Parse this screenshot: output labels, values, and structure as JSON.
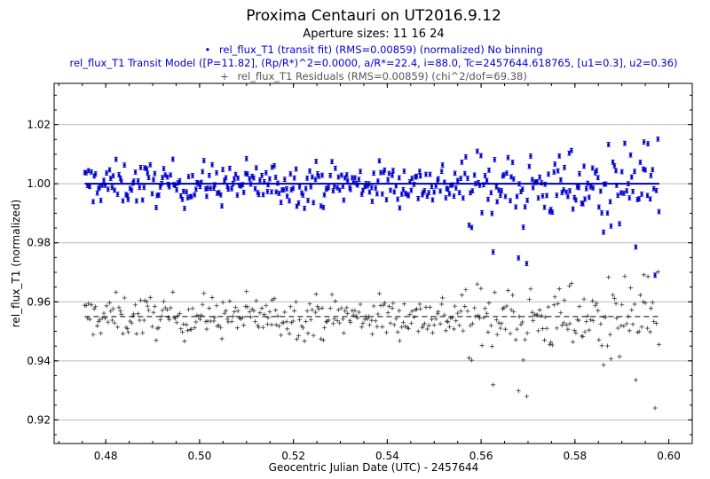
{
  "chart_data": {
    "type": "scatter",
    "title": "Proxima Centauri on UT2016.9.12",
    "subtitle": "Aperture sizes: 11 16 24",
    "xlabel": "Geocentric Julian Date (UTC) - 2457644",
    "ylabel": "rel_flux_T1 (normalized)",
    "xlim": [
      0.469,
      0.605
    ],
    "ylim": [
      0.912,
      1.034
    ],
    "xticks": [
      "0.48",
      "0.50",
      "0.52",
      "0.54",
      "0.56",
      "0.58",
      "0.60"
    ],
    "yticks": [
      "0.92",
      "0.94",
      "0.96",
      "0.98",
      "1.00",
      "1.02"
    ],
    "grid": "horizontal",
    "legend_position": "top-center",
    "legend": [
      {
        "marker": "•",
        "label": "rel_flux_T1 (transit fit) (RMS=0.00859) (normalized) No binning",
        "color": "#0000cc"
      },
      {
        "marker": "",
        "label": "rel_flux_T1 Transit Model ([P=11.82], (Rp/R*)^2=0.0000, a/R*=22.4, i=88.0, Tc=2457644.618765, [u1=0.3], u2=0.36)",
        "color": "#0000cc"
      },
      {
        "marker": "+",
        "label": "rel_flux_T1 Residuals (RMS=0.00859) (chi^2/dof=69.38)",
        "color": "#555555"
      }
    ],
    "colors": {
      "flux": "#0000cc",
      "model": "#0000aa",
      "residual": "#333333",
      "grid": "#bbbbbb"
    },
    "series": [
      {
        "name": "rel_flux_T1 (transit fit) (RMS=0.00859) (normalized) No binning",
        "style": "points-with-errorbars",
        "x_start": 0.4755,
        "x_end": 0.598,
        "n_points": 420,
        "mean": 1.0,
        "scatter_early": 0.0045,
        "scatter_late": 0.01,
        "error_bar": 0.0007
      },
      {
        "name": "rel_flux_T1 Transit Model ([P=11.82], (Rp/R*)^2=0.0000, a/R*=22.4, i=88.0, Tc=2457644.618765, [u1=0.3], u2=0.36)",
        "style": "solid-line",
        "x": [
          0.4755,
          0.598
        ],
        "y": [
          1.0,
          1.0
        ]
      },
      {
        "name": "rel_flux_T1 Residuals (RMS=0.00859) (chi^2/dof=69.38)",
        "style": "plus-markers",
        "offset_baseline": 0.955,
        "note_dashed_reference_y": 0.955
      }
    ]
  }
}
